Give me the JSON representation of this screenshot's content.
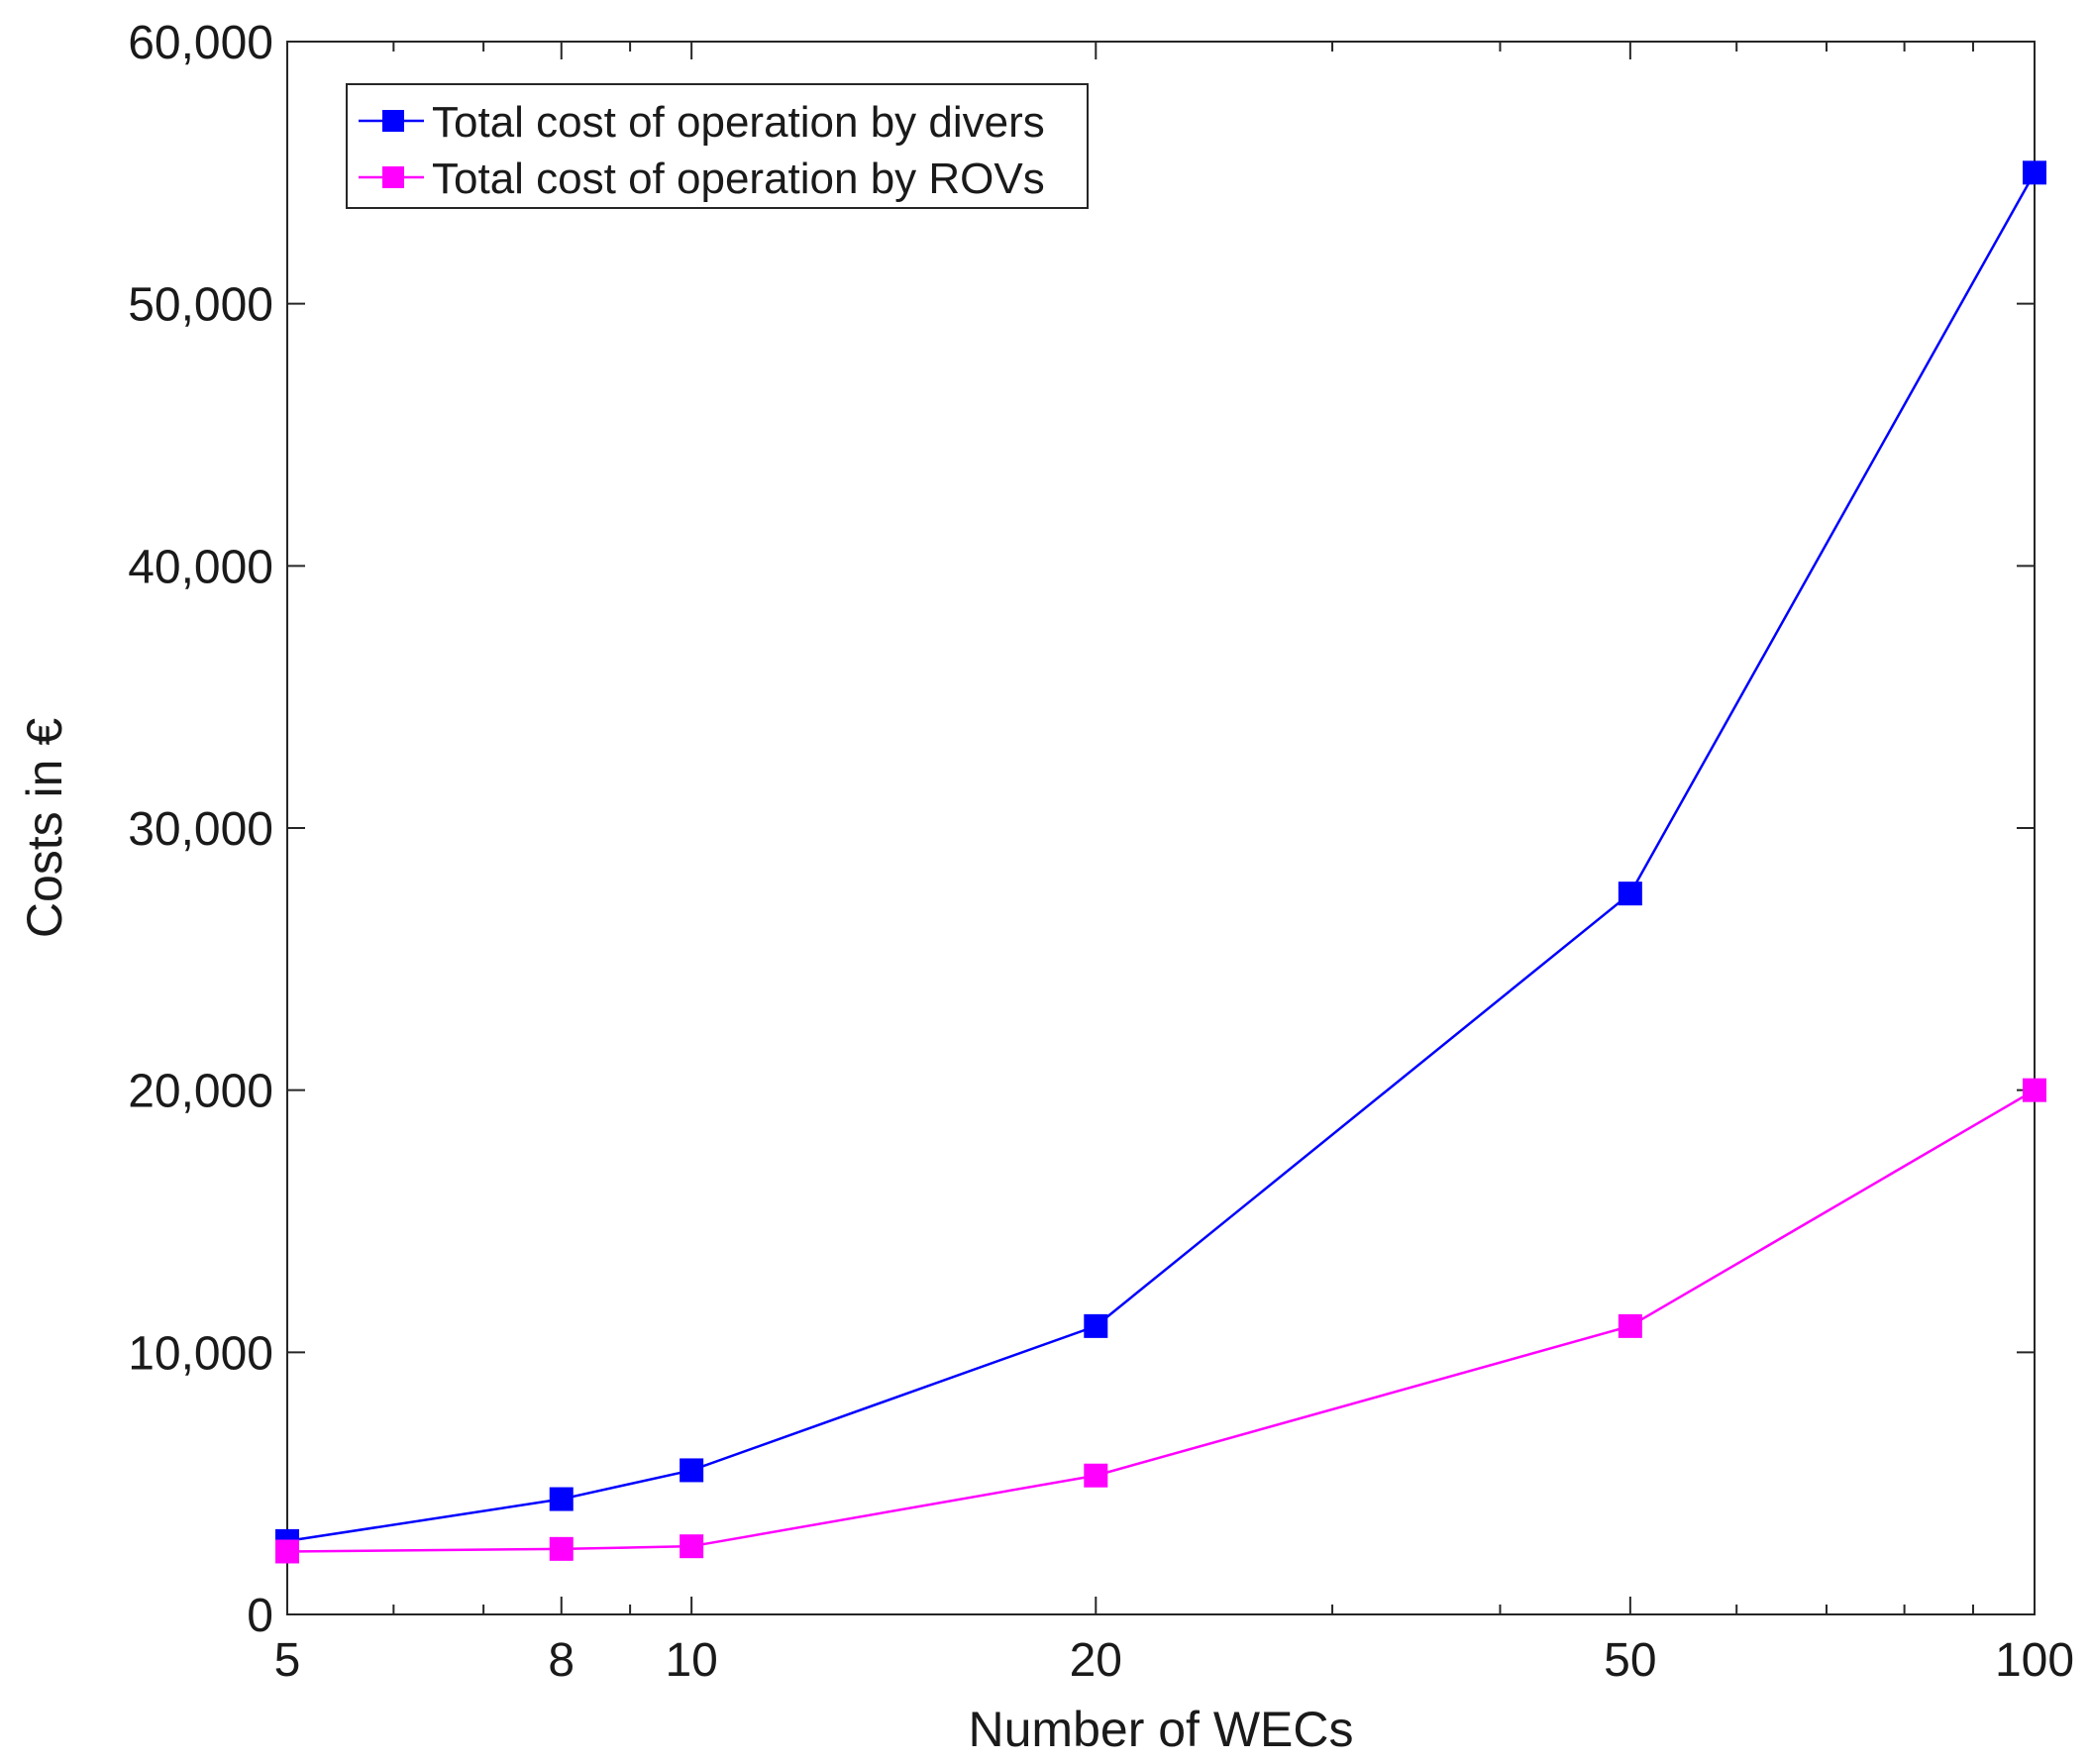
{
  "chart_data": {
    "type": "line",
    "xlabel": "Number of WECs",
    "ylabel": "Costs in €",
    "x_scale": "log",
    "x": [
      5,
      8,
      10,
      20,
      50,
      100
    ],
    "xlim": [
      5,
      100
    ],
    "ylim": [
      0,
      60000
    ],
    "x_ticks": [
      5,
      8,
      10,
      20,
      50,
      100
    ],
    "x_tick_labels": [
      "5",
      "8",
      "10",
      "20",
      "50",
      "100"
    ],
    "y_ticks": [
      0,
      10000,
      20000,
      30000,
      40000,
      50000,
      60000
    ],
    "y_tick_labels": [
      "0",
      "10,000",
      "20,000",
      "30,000",
      "40,000",
      "50,000",
      "60,000"
    ],
    "grid": false,
    "legend_position": "top-left",
    "series": [
      {
        "name": "Total cost of operation by divers",
        "color": "#0000ff",
        "marker": "square",
        "values": [
          2800,
          4400,
          5500,
          11000,
          27500,
          55000
        ]
      },
      {
        "name": "Total cost of operation by ROVs",
        "color": "#ff00ff",
        "marker": "square",
        "values": [
          2400,
          2500,
          2600,
          5300,
          11000,
          20000
        ]
      }
    ]
  }
}
